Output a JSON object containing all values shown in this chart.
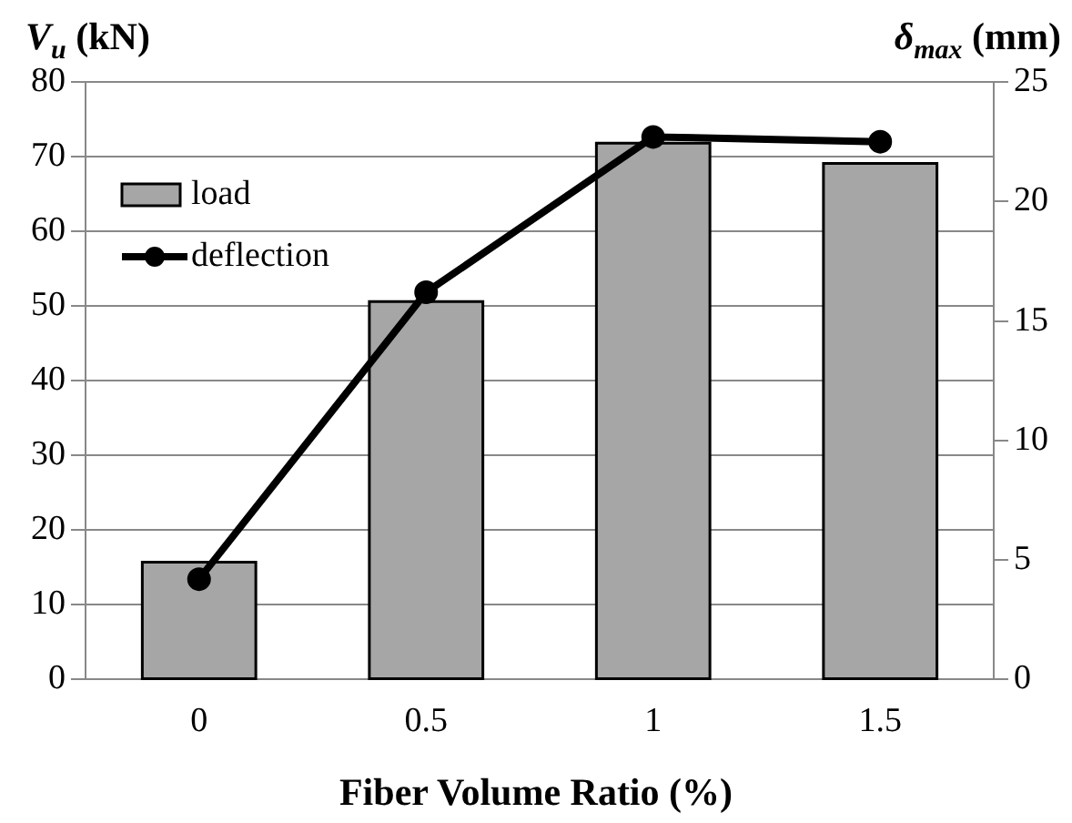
{
  "chart_data": {
    "type": "bar",
    "xlabel": "Fiber Volume Ratio (%)",
    "ylabel": "V$_{u}$ (kN)",
    "y2label": "δ$_{max}$ (mm)",
    "categories": [
      "0",
      "0.5",
      "1",
      "1.5"
    ],
    "series": [
      {
        "name": "load",
        "color": "#a6a6a6",
        "values": [
          15.7,
          50.6,
          71.8,
          69.1
        ]
      },
      {
        "name": "deflection",
        "type": "line",
        "axis": "y2",
        "color": "#000000",
        "values": [
          4.2,
          16.2,
          22.7,
          22.5
        ]
      }
    ],
    "ylim": [
      0,
      80
    ],
    "yticks": [
      0,
      10,
      20,
      30,
      40,
      50,
      60,
      70,
      80
    ],
    "y2lim": [
      0,
      25
    ],
    "y2ticks": [
      0,
      5,
      10,
      15,
      20,
      25
    ],
    "grid": "y",
    "legend": "top left",
    "marker": "circle"
  }
}
